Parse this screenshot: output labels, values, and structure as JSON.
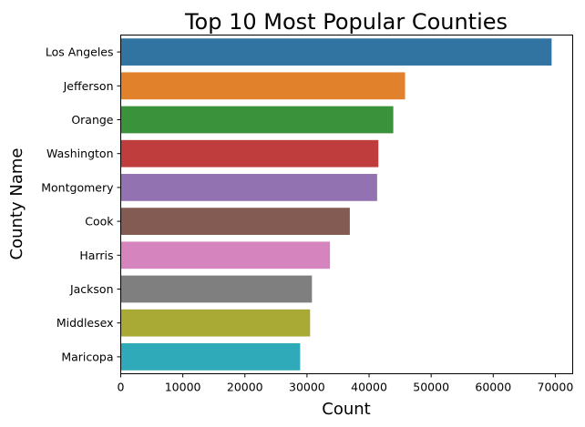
{
  "chart_data": {
    "type": "bar",
    "orientation": "horizontal",
    "title": "Top 10 Most Popular Counties",
    "xlabel": "Count",
    "ylabel": "County Name",
    "categories": [
      "Los Angeles",
      "Jefferson",
      "Orange",
      "Washington",
      "Montgomery",
      "Cook",
      "Harris",
      "Jackson",
      "Middlesex",
      "Maricopa"
    ],
    "values": [
      69400,
      45800,
      43900,
      41500,
      41300,
      36900,
      33700,
      30800,
      30500,
      28900
    ],
    "colors": [
      "#3274a1",
      "#e1812c",
      "#3a923a",
      "#c03d3e",
      "#9372b2",
      "#845b53",
      "#d684bd",
      "#7f7f7f",
      "#a9aa35",
      "#2eaab8"
    ],
    "xlim": [
      0,
      72800
    ],
    "xticks": [
      0,
      10000,
      20000,
      30000,
      40000,
      50000,
      60000,
      70000
    ],
    "grid": false
  }
}
